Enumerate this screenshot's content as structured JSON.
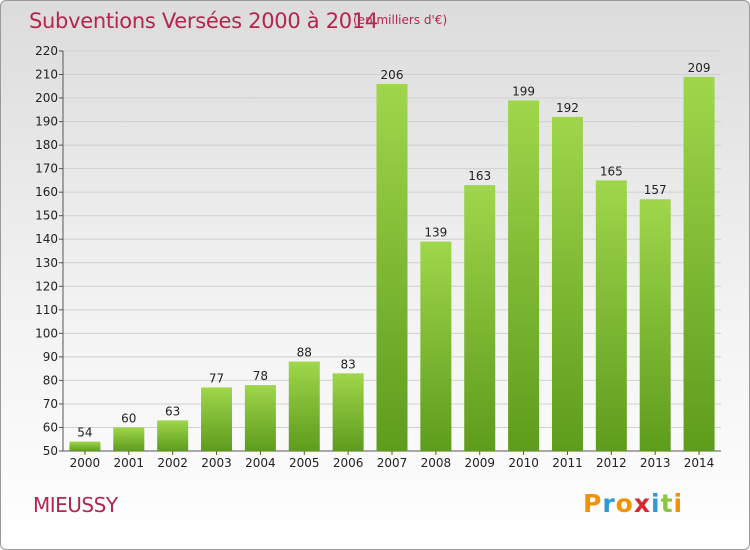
{
  "header": {
    "title": "Subventions Versées 2000 à 2014",
    "unit_note": "(en milliers d'€)"
  },
  "footer": {
    "commune": "MIEUSSY",
    "logo_text": "Proxiti",
    "logo_letters": [
      {
        "char": "P",
        "color": "#f39200"
      },
      {
        "char": "r",
        "color": "#2e9ad6"
      },
      {
        "char": "o",
        "color": "#f39200"
      },
      {
        "char": "x",
        "color": "#d9262e"
      },
      {
        "char": "i",
        "color": "#2e9ad6"
      },
      {
        "char": "t",
        "color": "#8cc63f"
      },
      {
        "char": "i",
        "color": "#f39200"
      }
    ]
  },
  "colors": {
    "title": "#b5254c",
    "bar_top": "#9fd64b",
    "bar_bottom": "#5e9c1c",
    "grid": "#d0d0d0"
  },
  "chart_data": {
    "type": "bar",
    "title": "Subventions Versées 2000 à 2014",
    "subtitle": "(en milliers d'€)",
    "xlabel": "",
    "ylabel": "",
    "categories": [
      "2000",
      "2001",
      "2002",
      "2003",
      "2004",
      "2005",
      "2006",
      "2007",
      "2008",
      "2009",
      "2010",
      "2011",
      "2012",
      "2013",
      "2014"
    ],
    "values": [
      54,
      60,
      63,
      77,
      78,
      88,
      83,
      206,
      139,
      163,
      199,
      192,
      165,
      157,
      209
    ],
    "ylim": [
      50,
      220
    ],
    "yticks": [
      50,
      60,
      70,
      80,
      90,
      100,
      110,
      120,
      130,
      140,
      150,
      160,
      170,
      180,
      190,
      200,
      210,
      220
    ],
    "grid": true,
    "data_labels": true
  }
}
